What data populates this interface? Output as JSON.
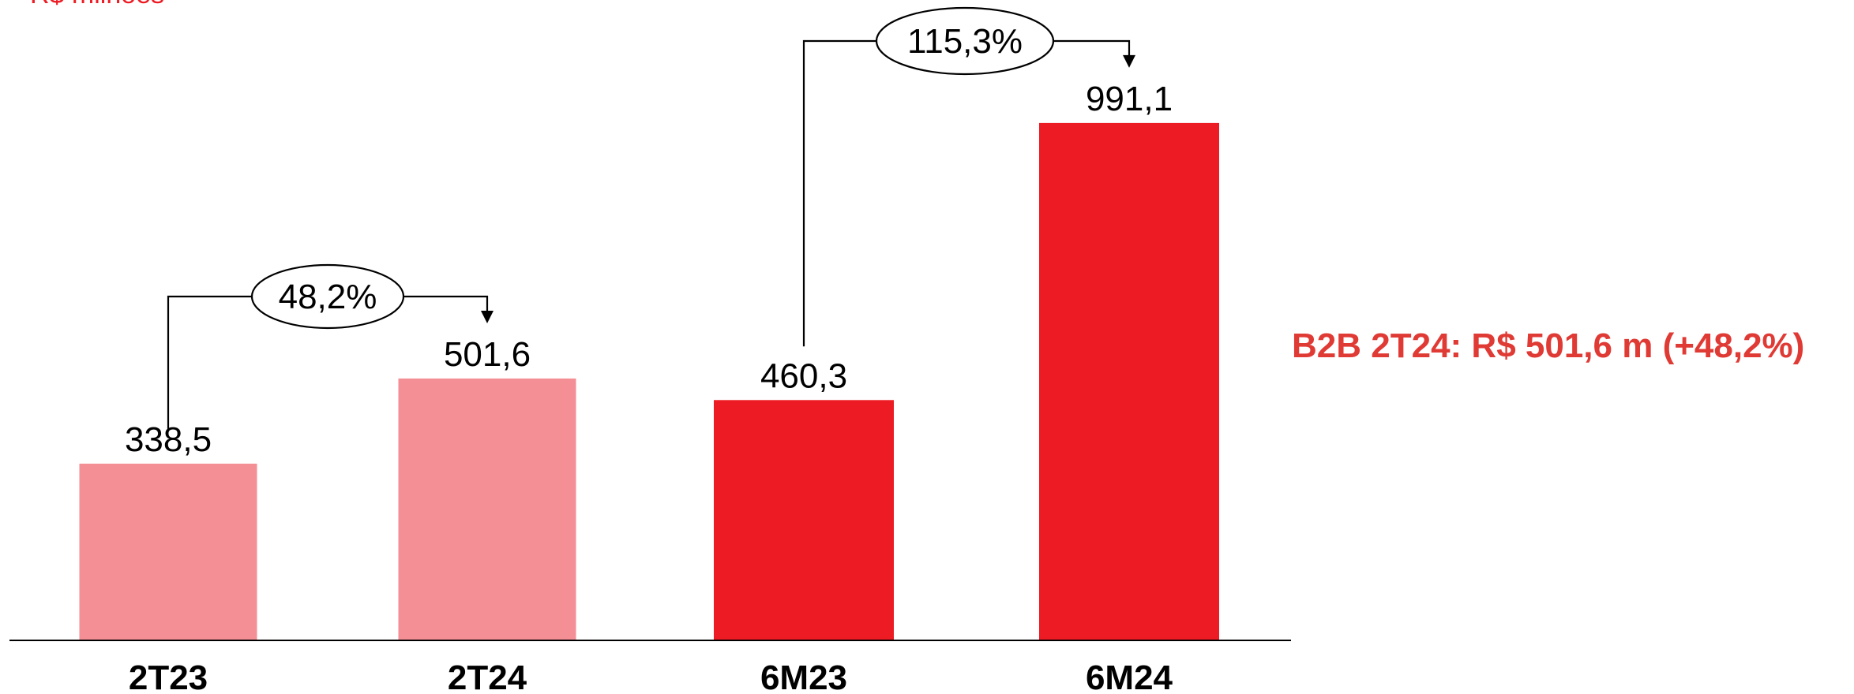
{
  "unit_label": "R$ milhões",
  "side_note": "B2B 2T24: R$ 501,6 m (+48,2%)",
  "colors": {
    "light": "#f58f96",
    "dark": "#ed1c24",
    "axis": "#000000"
  },
  "chart_data": {
    "type": "bar",
    "categories": [
      "2T23",
      "2T24",
      "6M23",
      "6M24"
    ],
    "values": [
      338.5,
      501.6,
      460.3,
      991.1
    ],
    "value_labels": [
      "338,5",
      "501,6",
      "460,3",
      "991,1"
    ],
    "bar_colors": [
      "light",
      "light",
      "dark",
      "dark"
    ],
    "ylim": [
      0,
      1000
    ],
    "title": "",
    "xlabel": "",
    "ylabel": "",
    "grid": false,
    "growth_annotations": [
      {
        "from": "2T23",
        "to": "2T24",
        "label": "48,2%"
      },
      {
        "from": "6M23",
        "to": "6M24",
        "label": "115,3%"
      }
    ]
  }
}
